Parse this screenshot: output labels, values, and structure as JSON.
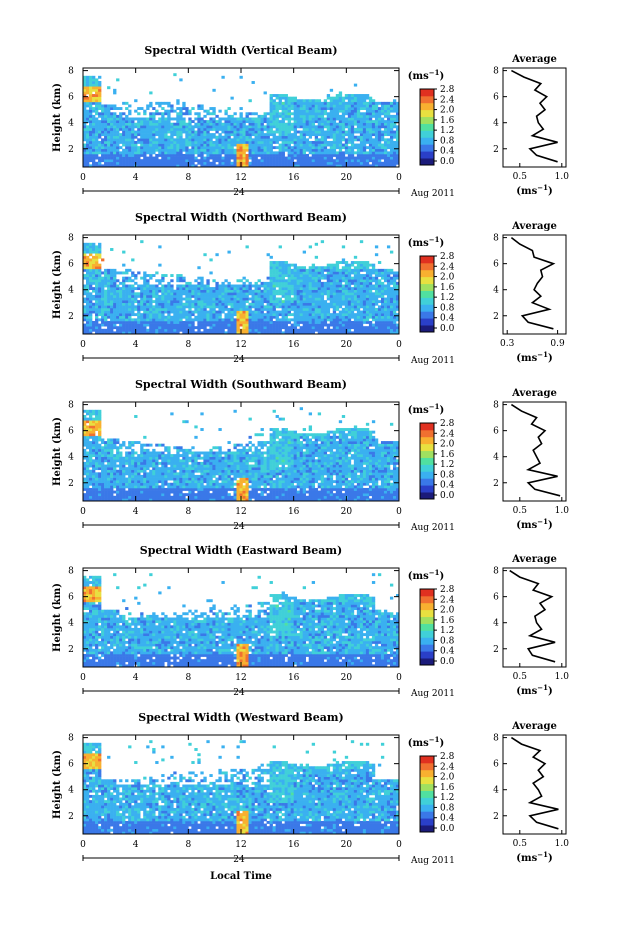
{
  "figure": {
    "xlabel": "Local Time",
    "date_label": "Aug 2011",
    "day_label": "24"
  },
  "chart_data": [
    {
      "type": "heatmap",
      "title": "Spectral Width (Vertical Beam)",
      "ylabel": "Height (km)",
      "x_ticks": [
        "0",
        "4",
        "8",
        "12",
        "16",
        "20",
        "0"
      ],
      "y_ticks": [
        "2",
        "4",
        "6",
        "8"
      ],
      "colorbar": {
        "unit": "(ms",
        "unit_sup": "−1",
        "unit_close": ")",
        "ticks": [
          "2.8",
          "2.4",
          "2.0",
          "1.6",
          "1.2",
          "0.8",
          "0.4",
          "0.0"
        ]
      },
      "profile": {
        "title": "Average",
        "xlabel": "(ms",
        "xlabel_sup": "−1",
        "xlabel_close": ")",
        "x_ticks": [
          "0.5",
          "1.0"
        ],
        "x_range": [
          0.3,
          1.05
        ],
        "y_ticks": [
          "2",
          "4",
          "6",
          "8"
        ],
        "heights": [
          1.0,
          1.5,
          2.0,
          2.5,
          3.0,
          3.5,
          4.0,
          4.5,
          5.0,
          5.5,
          6.0,
          6.5,
          7.0,
          7.5,
          8.0
        ],
        "values": [
          0.95,
          0.7,
          0.62,
          0.95,
          0.65,
          0.78,
          0.72,
          0.7,
          0.8,
          0.74,
          0.82,
          0.68,
          0.75,
          0.55,
          0.4
        ]
      }
    },
    {
      "type": "heatmap",
      "title": "Spectral Width (Northward Beam)",
      "ylabel": "Height (km)",
      "x_ticks": [
        "0",
        "4",
        "8",
        "12",
        "16",
        "20",
        "0"
      ],
      "y_ticks": [
        "2",
        "4",
        "6",
        "8"
      ],
      "colorbar": {
        "unit": "(ms",
        "unit_sup": "−1",
        "unit_close": ")",
        "ticks": [
          "2.8",
          "2.4",
          "2.0",
          "1.6",
          "1.2",
          "0.8",
          "0.4",
          "0.0"
        ]
      },
      "profile": {
        "title": "Average",
        "xlabel": "(ms",
        "xlabel_sup": "−1",
        "xlabel_close": ")",
        "x_ticks": [
          "0.3",
          "0.9"
        ],
        "x_range": [
          0.25,
          1.0
        ],
        "y_ticks": [
          "2",
          "4",
          "6",
          "8"
        ],
        "heights": [
          1.0,
          1.5,
          2.0,
          2.5,
          3.0,
          3.5,
          4.0,
          4.5,
          5.0,
          5.5,
          6.0,
          6.5,
          7.0,
          7.5,
          8.0
        ],
        "values": [
          0.85,
          0.55,
          0.48,
          0.8,
          0.6,
          0.7,
          0.62,
          0.66,
          0.72,
          0.7,
          0.85,
          0.62,
          0.6,
          0.45,
          0.35
        ]
      }
    },
    {
      "type": "heatmap",
      "title": "Spectral Width (Southward Beam)",
      "ylabel": "Height (km)",
      "x_ticks": [
        "0",
        "4",
        "8",
        "12",
        "16",
        "20",
        "0"
      ],
      "y_ticks": [
        "2",
        "4",
        "6",
        "8"
      ],
      "colorbar": {
        "unit": "(ms",
        "unit_sup": "−1",
        "unit_close": ")",
        "ticks": [
          "2.8",
          "2.4",
          "2.0",
          "1.6",
          "1.2",
          "0.8",
          "0.4",
          "0.0"
        ]
      },
      "profile": {
        "title": "Average",
        "xlabel": "(ms",
        "xlabel_sup": "−1",
        "xlabel_close": ")",
        "x_ticks": [
          "0.5",
          "1.0"
        ],
        "x_range": [
          0.3,
          1.05
        ],
        "y_ticks": [
          "2",
          "4",
          "6",
          "8"
        ],
        "heights": [
          1.0,
          1.5,
          2.0,
          2.5,
          3.0,
          3.5,
          4.0,
          4.5,
          5.0,
          5.5,
          6.0,
          6.5,
          7.0,
          7.5,
          8.0
        ],
        "values": [
          0.98,
          0.68,
          0.6,
          0.95,
          0.6,
          0.74,
          0.7,
          0.66,
          0.76,
          0.72,
          0.8,
          0.64,
          0.7,
          0.52,
          0.4
        ]
      }
    },
    {
      "type": "heatmap",
      "title": "Spectral Width (Eastward Beam)",
      "ylabel": "Height (km)",
      "x_ticks": [
        "0",
        "4",
        "8",
        "12",
        "16",
        "20",
        "0"
      ],
      "y_ticks": [
        "2",
        "4",
        "6",
        "8"
      ],
      "colorbar": {
        "unit": "(ms",
        "unit_sup": "−1",
        "unit_close": ")",
        "ticks": [
          "2.8",
          "2.4",
          "2.0",
          "1.6",
          "1.2",
          "0.8",
          "0.4",
          "0.0"
        ]
      },
      "profile": {
        "title": "Average",
        "xlabel": "(ms",
        "xlabel_sup": "−1",
        "xlabel_close": ")",
        "x_ticks": [
          "0.5",
          "1.0"
        ],
        "x_range": [
          0.3,
          1.05
        ],
        "y_ticks": [
          "2",
          "4",
          "6",
          "8"
        ],
        "heights": [
          1.0,
          1.5,
          2.0,
          2.5,
          3.0,
          3.5,
          4.0,
          4.5,
          5.0,
          5.5,
          6.0,
          6.5,
          7.0,
          7.5,
          8.0
        ],
        "values": [
          0.92,
          0.65,
          0.6,
          0.92,
          0.62,
          0.76,
          0.7,
          0.68,
          0.8,
          0.74,
          0.88,
          0.66,
          0.72,
          0.5,
          0.38
        ]
      }
    },
    {
      "type": "heatmap",
      "title": "Spectral Width (Westward Beam)",
      "ylabel": "Height (km)",
      "x_ticks": [
        "0",
        "4",
        "8",
        "12",
        "16",
        "20",
        "0"
      ],
      "y_ticks": [
        "2",
        "4",
        "6",
        "8"
      ],
      "colorbar": {
        "unit": "(ms",
        "unit_sup": "−1",
        "unit_close": ")",
        "ticks": [
          "2.8",
          "2.4",
          "2.0",
          "1.6",
          "1.2",
          "0.8",
          "0.4",
          "0.0"
        ]
      },
      "profile": {
        "title": "Average",
        "xlabel": "(ms",
        "xlabel_sup": "−1",
        "xlabel_close": ")",
        "x_ticks": [
          "0.5",
          "1.0"
        ],
        "x_range": [
          0.3,
          1.05
        ],
        "y_ticks": [
          "2",
          "4",
          "6",
          "8"
        ],
        "heights": [
          1.0,
          1.5,
          2.0,
          2.5,
          3.0,
          3.5,
          4.0,
          4.5,
          5.0,
          5.5,
          6.0,
          6.5,
          7.0,
          7.5,
          8.0
        ],
        "values": [
          0.96,
          0.7,
          0.62,
          0.96,
          0.62,
          0.76,
          0.72,
          0.66,
          0.78,
          0.72,
          0.8,
          0.66,
          0.74,
          0.52,
          0.4
        ]
      }
    }
  ],
  "colormap": [
    "#1b1b7a",
    "#2a3fc8",
    "#3a78e8",
    "#3ab0f0",
    "#40d0d8",
    "#50e0a0",
    "#a0e060",
    "#e8e040",
    "#f8b030",
    "#f07030",
    "#e03020"
  ]
}
